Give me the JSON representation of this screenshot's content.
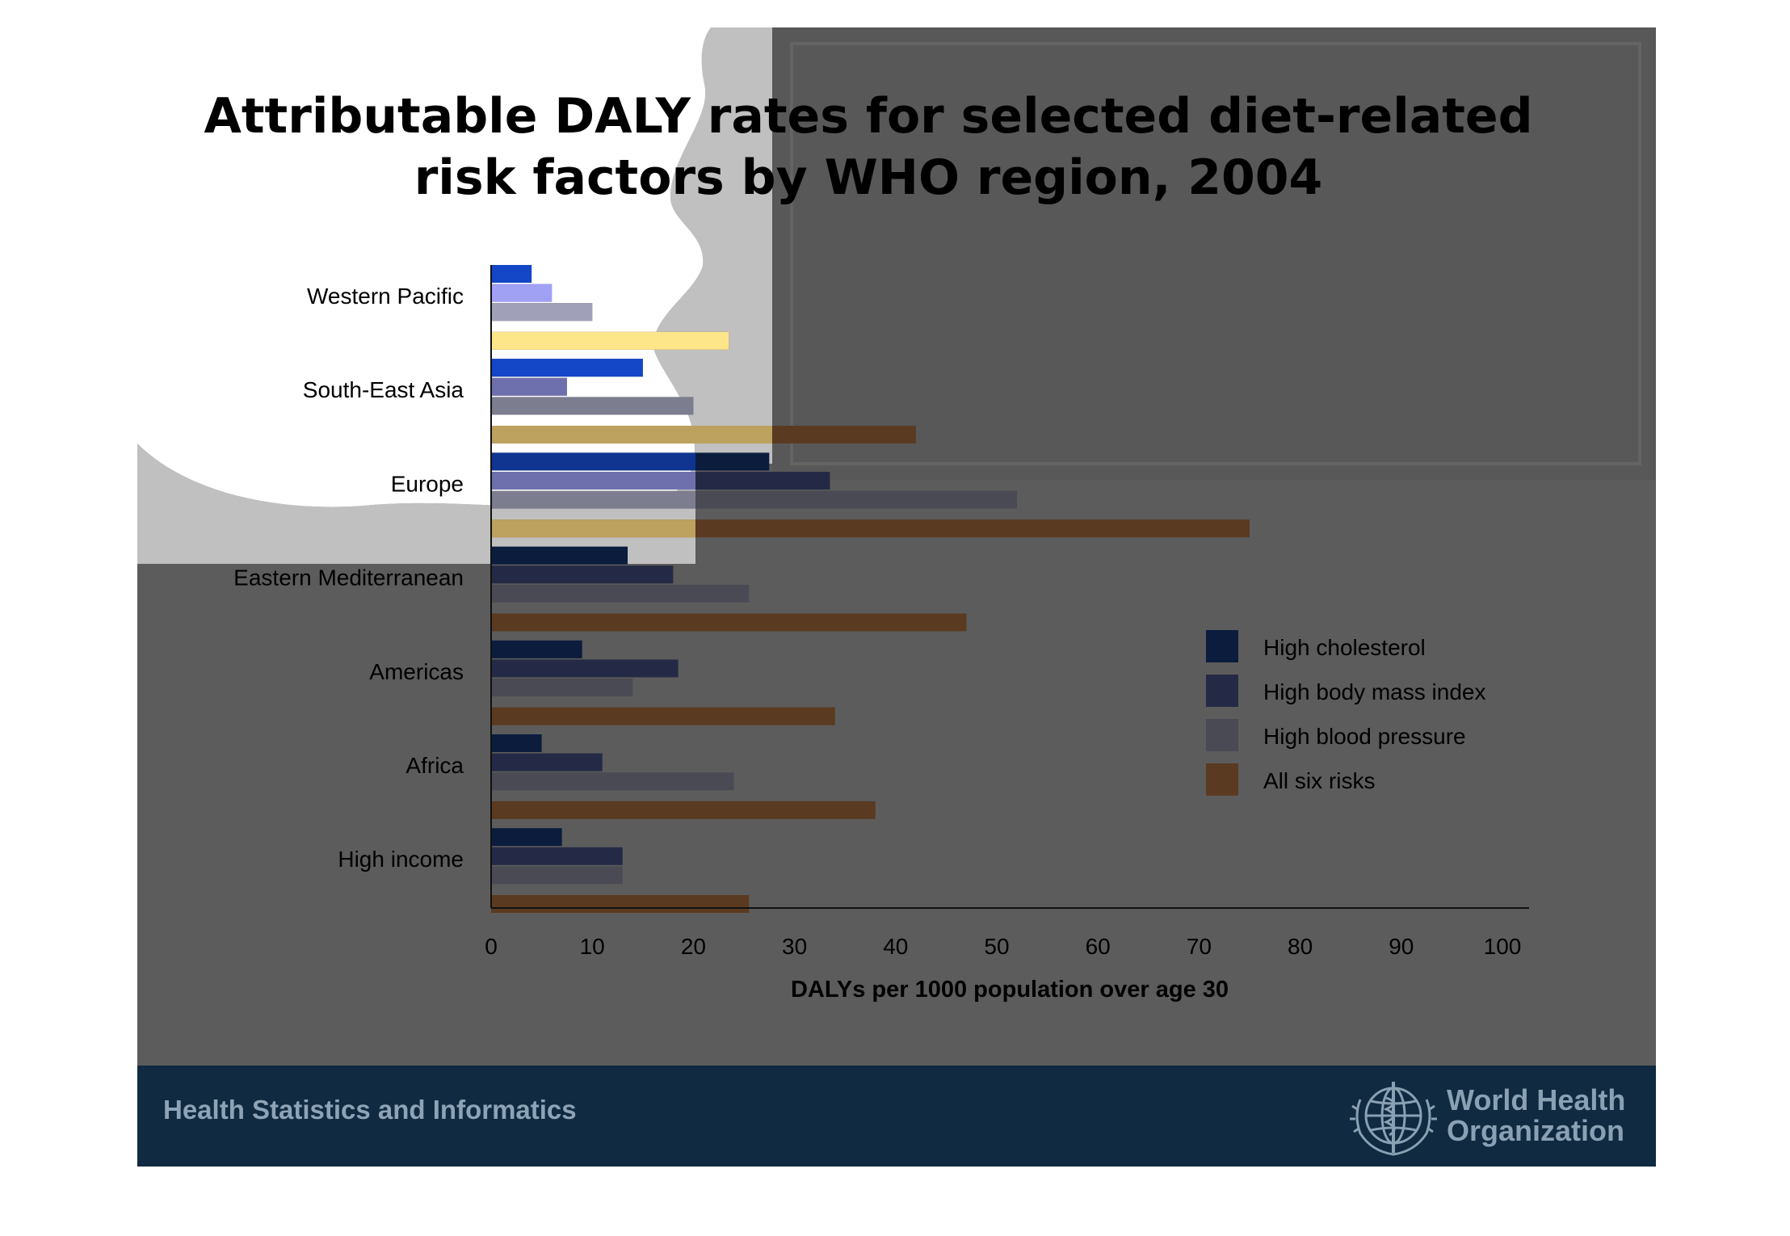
{
  "slide": {
    "title_line1": "Attributable DALY rates for selected diet-related",
    "title_line2": "risk factors by WHO region, 2004",
    "footer_text": "Health Statistics and Informatics",
    "org_line1": "World Health",
    "org_line2": "Organization"
  },
  "colors": {
    "slide_background": "#5c5c5c",
    "footer_background": "#0f2a41",
    "footer_text": "#8ea3b5",
    "label_text": "#000000"
  },
  "chart_data": {
    "type": "bar",
    "orientation": "horizontal",
    "title": "",
    "xlabel": "DALYs per 1000 population over age 30",
    "ylabel": "",
    "xlim": [
      0,
      100
    ],
    "xticks": [
      0,
      10,
      20,
      30,
      40,
      50,
      60,
      70,
      80,
      90,
      100
    ],
    "categories": [
      "Western Pacific",
      "South-East Asia",
      "Europe",
      "Eastern Mediterranean",
      "Americas",
      "Africa",
      "High income"
    ],
    "series": [
      {
        "name": "High cholesterol",
        "color": "#0b1c3d",
        "values": [
          4,
          15,
          27.5,
          13.5,
          9,
          5,
          7
        ]
      },
      {
        "name": "High body mass index",
        "color": "#242a45",
        "values": [
          6,
          7.5,
          33.5,
          18,
          18.5,
          11,
          13
        ]
      },
      {
        "name": "High blood pressure",
        "color": "#4a4a55",
        "values": [
          10,
          20,
          52,
          25.5,
          14,
          24,
          13
        ]
      },
      {
        "name": "All six risks",
        "color": "#5a3a20",
        "values": [
          23.5,
          42,
          75,
          47,
          34,
          38,
          25.5
        ]
      }
    ],
    "light_overlay_colors": [
      "#1446c8",
      "#a0a0f4",
      "#a0a0b8",
      "#fde68a"
    ],
    "legend_position": "right",
    "grid": false
  }
}
